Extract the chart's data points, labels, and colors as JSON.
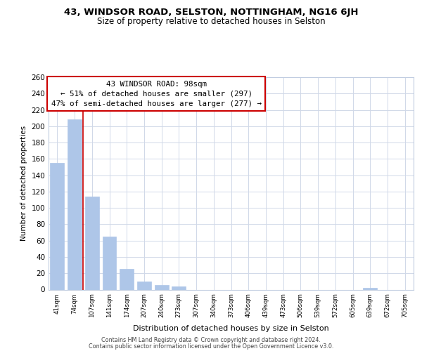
{
  "title": "43, WINDSOR ROAD, SELSTON, NOTTINGHAM, NG16 6JH",
  "subtitle": "Size of property relative to detached houses in Selston",
  "xlabel": "Distribution of detached houses by size in Selston",
  "ylabel": "Number of detached properties",
  "bar_labels": [
    "41sqm",
    "74sqm",
    "107sqm",
    "141sqm",
    "174sqm",
    "207sqm",
    "240sqm",
    "273sqm",
    "307sqm",
    "340sqm",
    "373sqm",
    "406sqm",
    "439sqm",
    "473sqm",
    "506sqm",
    "539sqm",
    "572sqm",
    "605sqm",
    "639sqm",
    "672sqm",
    "705sqm"
  ],
  "bar_values": [
    155,
    208,
    114,
    65,
    25,
    10,
    6,
    4,
    0,
    0,
    0,
    0,
    0,
    0,
    0,
    0,
    0,
    0,
    2,
    0,
    0
  ],
  "bar_color": "#aec6e8",
  "bar_edge_color": "#aec6e8",
  "property_line_x": 1.5,
  "property_line_color": "#cc0000",
  "annotation_title": "43 WINDSOR ROAD: 98sqm",
  "annotation_line1": "← 51% of detached houses are smaller (297)",
  "annotation_line2": "47% of semi-detached houses are larger (277) →",
  "annotation_box_color": "#ffffff",
  "annotation_box_edge": "#cc0000",
  "ylim": [
    0,
    260
  ],
  "yticks": [
    0,
    20,
    40,
    60,
    80,
    100,
    120,
    140,
    160,
    180,
    200,
    220,
    240,
    260
  ],
  "footer1": "Contains HM Land Registry data © Crown copyright and database right 2024.",
  "footer2": "Contains public sector information licensed under the Open Government Licence v3.0.",
  "background_color": "#ffffff",
  "grid_color": "#d0d8e8"
}
